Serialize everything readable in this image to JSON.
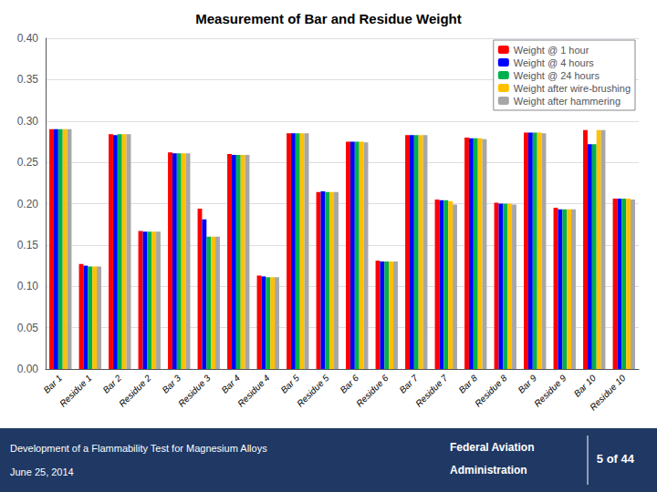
{
  "chart_data": {
    "type": "bar",
    "title": "Measurement of Bar and Residue Weight",
    "categories": [
      "Bar 1",
      "Residue 1",
      "Bar 2",
      "Residue 2",
      "Bar 3",
      "Residue 3",
      "Bar 4",
      "Residue 4",
      "Bar 5",
      "Residue 5",
      "Bar 6",
      "Residue 6",
      "Bar 7",
      "Residue 7",
      "Bar 8",
      "Residue 8",
      "Bar 9",
      "Residue 9",
      "Bar 10",
      "Residue 10"
    ],
    "series": [
      {
        "name": "Weight @ 1 hour",
        "color": "#FF0000",
        "values": [
          0.29,
          0.127,
          0.284,
          0.167,
          0.262,
          0.194,
          0.26,
          0.113,
          0.285,
          0.214,
          0.275,
          0.131,
          0.283,
          0.205,
          0.28,
          0.201,
          0.286,
          0.195,
          0.289,
          0.206
        ]
      },
      {
        "name": "Weight @ 4 hours",
        "color": "#0000FF",
        "values": [
          0.29,
          0.125,
          0.283,
          0.166,
          0.261,
          0.181,
          0.259,
          0.112,
          0.285,
          0.215,
          0.275,
          0.13,
          0.283,
          0.204,
          0.279,
          0.2,
          0.286,
          0.193,
          0.272,
          0.206
        ]
      },
      {
        "name": "Weight @ 24 hours",
        "color": "#00B050",
        "values": [
          0.29,
          0.124,
          0.284,
          0.166,
          0.261,
          0.16,
          0.259,
          0.111,
          0.285,
          0.214,
          0.275,
          0.13,
          0.283,
          0.204,
          0.279,
          0.2,
          0.286,
          0.193,
          0.272,
          0.206
        ]
      },
      {
        "name": "Weight after wire-brushing",
        "color": "#FFC000",
        "values": [
          0.29,
          0.124,
          0.284,
          0.166,
          0.261,
          0.16,
          0.259,
          0.111,
          0.285,
          0.214,
          0.275,
          0.13,
          0.283,
          0.203,
          0.279,
          0.2,
          0.286,
          0.193,
          0.289,
          0.206
        ]
      },
      {
        "name": "Weight after hammering",
        "color": "#A6A6A6",
        "values": [
          0.29,
          0.124,
          0.284,
          0.166,
          0.261,
          0.16,
          0.259,
          0.111,
          0.285,
          0.214,
          0.274,
          0.13,
          0.283,
          0.199,
          0.278,
          0.199,
          0.285,
          0.193,
          0.289,
          0.205
        ]
      }
    ],
    "ylim": [
      0.0,
      0.4
    ],
    "yticks": [
      {
        "value": 0.0,
        "label": "0.00"
      },
      {
        "value": 0.05,
        "label": "0.05"
      },
      {
        "value": 0.1,
        "label": "0.10"
      },
      {
        "value": 0.15,
        "label": "0.15"
      },
      {
        "value": 0.2,
        "label": "0.20"
      },
      {
        "value": 0.25,
        "label": "0.25"
      },
      {
        "value": 0.3,
        "label": "0.30"
      },
      {
        "value": 0.35,
        "label": "0.35"
      },
      {
        "value": 0.4,
        "label": "0.40"
      }
    ],
    "grid": true,
    "legend": "upper right",
    "annotations": [
      "Development of a Flammability Test for Magnesium Alloys",
      "June 25, 2014",
      "Federal Aviation",
      "Administration",
      "5 of 44"
    ]
  }
}
